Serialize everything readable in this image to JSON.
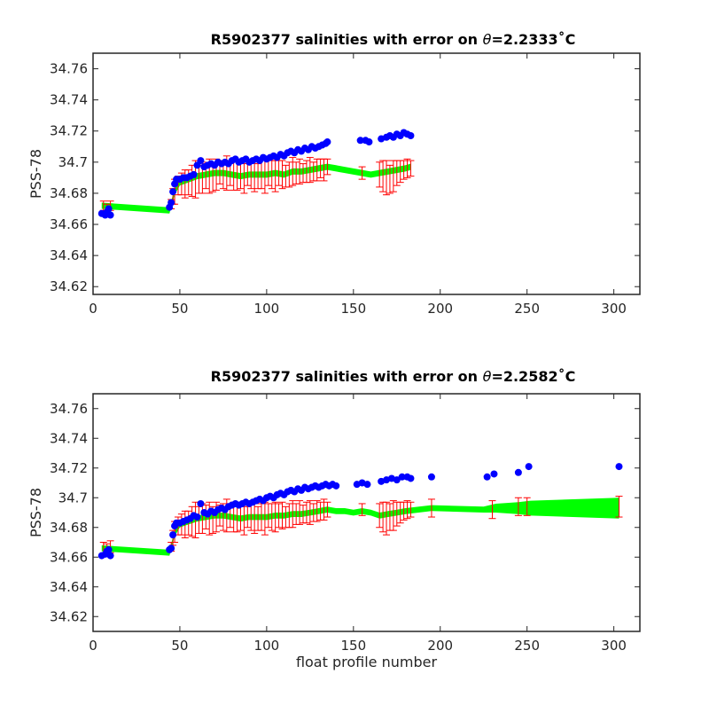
{
  "chart_data": [
    {
      "type": "scatter",
      "title": "R5902377 salinities with error on θ=2.2333˚C",
      "title_prefix": "R5902377 salinities with error on ",
      "title_theta": "θ",
      "title_value": "=2.2333",
      "title_unit": "˚C",
      "xlabel": "",
      "ylabel": "PSS-78",
      "xlim": [
        0,
        315
      ],
      "ylim": [
        34.615,
        34.77
      ],
      "xticks": [
        0,
        50,
        100,
        150,
        200,
        250,
        300
      ],
      "yticks": [
        34.62,
        34.64,
        34.66,
        34.68,
        34.7,
        34.72,
        34.74,
        34.76
      ],
      "ytick_labels": [
        "34.62",
        "34.64",
        "34.66",
        "34.68",
        "34.7",
        "34.72",
        "34.74",
        "34.76"
      ],
      "grid": false,
      "colors": {
        "observed": "#0000ff",
        "calibrated": "#00ff00",
        "error": "#ff0000"
      },
      "band": {
        "x": [
          5,
          44,
          45,
          47,
          50,
          55,
          60,
          65,
          70,
          75,
          80,
          85,
          90,
          95,
          100,
          105,
          110,
          115,
          120,
          125,
          130,
          135,
          140,
          145,
          150,
          155,
          160,
          165,
          170,
          175,
          180,
          183
        ],
        "center": [
          34.672,
          34.669,
          34.673,
          34.681,
          34.687,
          34.689,
          34.691,
          34.692,
          34.693,
          34.693,
          34.692,
          34.691,
          34.692,
          34.692,
          34.692,
          34.693,
          34.692,
          34.694,
          34.694,
          34.695,
          34.696,
          34.697,
          34.696,
          34.695,
          34.694,
          34.693,
          34.692,
          34.693,
          34.694,
          34.695,
          34.696,
          34.697
        ],
        "half_width": [
          0.002,
          0.002,
          0.002,
          0.002,
          0.002,
          0.002,
          0.002,
          0.002,
          0.002,
          0.002,
          0.002,
          0.002,
          0.002,
          0.002,
          0.002,
          0.002,
          0.002,
          0.002,
          0.002,
          0.002,
          0.002,
          0.002,
          0.002,
          0.002,
          0.002,
          0.002,
          0.002,
          0.002,
          0.002,
          0.002,
          0.002,
          0.002
        ]
      },
      "errorbars": {
        "x": [
          6,
          8,
          10,
          45,
          46,
          47,
          49,
          51,
          53,
          55,
          57,
          59,
          61,
          63,
          65,
          67,
          69,
          71,
          73,
          75,
          77,
          79,
          81,
          83,
          85,
          87,
          89,
          91,
          93,
          95,
          97,
          99,
          101,
          103,
          105,
          107,
          109,
          111,
          113,
          115,
          117,
          119,
          121,
          123,
          125,
          127,
          129,
          131,
          133,
          135,
          155,
          165,
          167,
          169,
          171,
          173,
          175,
          177,
          179,
          181,
          183
        ],
        "center": [
          34.672,
          34.67,
          34.672,
          34.673,
          34.678,
          34.681,
          34.685,
          34.686,
          34.686,
          34.687,
          34.688,
          34.689,
          34.689,
          34.69,
          34.691,
          34.691,
          34.69,
          34.692,
          34.693,
          34.692,
          34.693,
          34.693,
          34.692,
          34.691,
          34.691,
          34.69,
          34.692,
          34.692,
          34.691,
          34.691,
          34.692,
          34.691,
          34.693,
          34.692,
          34.691,
          34.693,
          34.692,
          34.691,
          34.692,
          34.694,
          34.693,
          34.694,
          34.693,
          34.694,
          34.695,
          34.694,
          34.695,
          34.696,
          34.695,
          34.697,
          34.693,
          34.692,
          34.691,
          34.69,
          34.689,
          34.691,
          34.693,
          34.694,
          34.695,
          34.696,
          34.696
        ],
        "err": [
          0.003,
          0.003,
          0.003,
          0.003,
          0.005,
          0.008,
          0.006,
          0.007,
          0.009,
          0.008,
          0.01,
          0.012,
          0.009,
          0.01,
          0.008,
          0.011,
          0.009,
          0.01,
          0.007,
          0.009,
          0.011,
          0.008,
          0.01,
          0.009,
          0.008,
          0.01,
          0.007,
          0.009,
          0.01,
          0.008,
          0.009,
          0.011,
          0.008,
          0.009,
          0.01,
          0.008,
          0.009,
          0.007,
          0.008,
          0.009,
          0.007,
          0.008,
          0.006,
          0.007,
          0.008,
          0.006,
          0.007,
          0.006,
          0.007,
          0.005,
          0.004,
          0.008,
          0.01,
          0.011,
          0.009,
          0.01,
          0.008,
          0.007,
          0.006,
          0.006,
          0.005
        ]
      },
      "observed": {
        "x": [
          5,
          7,
          8,
          9,
          10,
          44,
          45,
          46,
          47,
          48,
          50,
          52,
          54,
          56,
          58,
          60,
          62,
          64,
          66,
          68,
          70,
          72,
          74,
          76,
          78,
          80,
          82,
          84,
          86,
          88,
          90,
          92,
          94,
          96,
          98,
          100,
          102,
          104,
          106,
          108,
          110,
          112,
          114,
          116,
          118,
          120,
          122,
          124,
          126,
          128,
          130,
          132,
          134,
          135,
          154,
          157,
          159,
          166,
          169,
          171,
          173,
          175,
          177,
          179,
          181,
          183
        ],
        "y": [
          34.667,
          34.666,
          34.668,
          34.67,
          34.666,
          34.671,
          34.674,
          34.681,
          34.686,
          34.689,
          34.689,
          34.69,
          34.69,
          34.691,
          34.692,
          34.698,
          34.701,
          34.697,
          34.698,
          34.699,
          34.698,
          34.7,
          34.699,
          34.7,
          34.699,
          34.701,
          34.702,
          34.7,
          34.701,
          34.702,
          34.7,
          34.701,
          34.702,
          34.701,
          34.703,
          34.702,
          34.703,
          34.704,
          34.703,
          34.705,
          34.704,
          34.706,
          34.707,
          34.706,
          34.708,
          34.707,
          34.709,
          34.708,
          34.71,
          34.709,
          34.71,
          34.711,
          34.712,
          34.713,
          34.714,
          34.714,
          34.713,
          34.715,
          34.716,
          34.717,
          34.716,
          34.718,
          34.717,
          34.719,
          34.718,
          34.717
        ]
      }
    },
    {
      "type": "scatter",
      "title": "R5902377 salinities with error on θ=2.2582˚C",
      "title_prefix": "R5902377 salinities with error on ",
      "title_theta": "θ",
      "title_value": "=2.2582",
      "title_unit": "˚C",
      "xlabel": "float profile number",
      "ylabel": "PSS-78",
      "xlim": [
        0,
        315
      ],
      "ylim": [
        34.61,
        34.77
      ],
      "xticks": [
        0,
        50,
        100,
        150,
        200,
        250,
        300
      ],
      "yticks": [
        34.62,
        34.64,
        34.66,
        34.68,
        34.7,
        34.72,
        34.74,
        34.76
      ],
      "ytick_labels": [
        "34.62",
        "34.64",
        "34.66",
        "34.68",
        "34.7",
        "34.72",
        "34.74",
        "34.76"
      ],
      "grid": false,
      "colors": {
        "observed": "#0000ff",
        "calibrated": "#00ff00",
        "error": "#ff0000"
      },
      "band": {
        "x": [
          5,
          44,
          45,
          47,
          50,
          55,
          60,
          65,
          70,
          75,
          80,
          85,
          90,
          95,
          100,
          105,
          110,
          115,
          120,
          125,
          130,
          135,
          140,
          145,
          150,
          155,
          160,
          165,
          170,
          175,
          180,
          195,
          225,
          232,
          245,
          252,
          303
        ],
        "center": [
          34.666,
          34.663,
          34.667,
          34.676,
          34.682,
          34.684,
          34.686,
          34.687,
          34.688,
          34.688,
          34.687,
          34.686,
          34.687,
          34.687,
          34.687,
          34.688,
          34.688,
          34.689,
          34.689,
          34.69,
          34.691,
          34.692,
          34.691,
          34.691,
          34.69,
          34.691,
          34.69,
          34.688,
          34.689,
          34.69,
          34.691,
          34.693,
          34.692,
          34.693,
          34.693,
          34.693,
          34.693
        ],
        "half_width": [
          0.002,
          0.002,
          0.002,
          0.002,
          0.002,
          0.002,
          0.002,
          0.002,
          0.002,
          0.002,
          0.002,
          0.002,
          0.002,
          0.002,
          0.002,
          0.002,
          0.002,
          0.002,
          0.002,
          0.002,
          0.002,
          0.002,
          0.002,
          0.002,
          0.002,
          0.002,
          0.002,
          0.002,
          0.002,
          0.002,
          0.002,
          0.002,
          0.002,
          0.003,
          0.004,
          0.005,
          0.007
        ]
      },
      "errorbars": {
        "x": [
          6,
          8,
          10,
          45,
          46,
          47,
          49,
          51,
          53,
          55,
          57,
          59,
          61,
          63,
          65,
          67,
          69,
          71,
          73,
          75,
          77,
          79,
          81,
          83,
          85,
          87,
          89,
          91,
          93,
          95,
          97,
          99,
          101,
          103,
          105,
          107,
          109,
          111,
          113,
          115,
          117,
          119,
          121,
          123,
          125,
          127,
          129,
          131,
          133,
          135,
          155,
          165,
          167,
          169,
          171,
          173,
          175,
          177,
          179,
          181,
          183,
          195,
          230,
          245,
          250,
          303
        ],
        "center": [
          34.666,
          34.665,
          34.667,
          34.667,
          34.673,
          34.677,
          34.681,
          34.682,
          34.682,
          34.683,
          34.684,
          34.685,
          34.685,
          34.686,
          34.687,
          34.686,
          34.685,
          34.687,
          34.688,
          34.687,
          34.688,
          34.688,
          34.687,
          34.686,
          34.686,
          34.685,
          34.687,
          34.687,
          34.686,
          34.686,
          34.687,
          34.686,
          34.688,
          34.687,
          34.687,
          34.688,
          34.688,
          34.687,
          34.688,
          34.689,
          34.689,
          34.69,
          34.689,
          34.69,
          34.69,
          34.69,
          34.691,
          34.691,
          34.692,
          34.692,
          34.692,
          34.688,
          34.687,
          34.686,
          34.687,
          34.688,
          34.689,
          34.69,
          34.691,
          34.692,
          34.692,
          34.693,
          34.692,
          34.694,
          34.694,
          34.694
        ],
        "err": [
          0.004,
          0.004,
          0.004,
          0.003,
          0.005,
          0.007,
          0.006,
          0.007,
          0.009,
          0.008,
          0.01,
          0.012,
          0.009,
          0.01,
          0.008,
          0.011,
          0.009,
          0.01,
          0.007,
          0.009,
          0.011,
          0.008,
          0.01,
          0.009,
          0.008,
          0.01,
          0.007,
          0.009,
          0.01,
          0.008,
          0.009,
          0.011,
          0.008,
          0.009,
          0.01,
          0.008,
          0.009,
          0.007,
          0.008,
          0.009,
          0.007,
          0.008,
          0.006,
          0.007,
          0.008,
          0.006,
          0.007,
          0.006,
          0.007,
          0.005,
          0.004,
          0.008,
          0.01,
          0.011,
          0.009,
          0.01,
          0.008,
          0.007,
          0.006,
          0.006,
          0.005,
          0.006,
          0.006,
          0.006,
          0.006,
          0.007
        ]
      },
      "observed": {
        "x": [
          5,
          7,
          8,
          9,
          10,
          44,
          45,
          46,
          47,
          48,
          50,
          52,
          54,
          56,
          58,
          60,
          62,
          64,
          66,
          68,
          70,
          72,
          74,
          76,
          78,
          80,
          82,
          84,
          86,
          88,
          90,
          92,
          94,
          96,
          98,
          100,
          102,
          104,
          106,
          108,
          110,
          112,
          114,
          116,
          118,
          120,
          122,
          124,
          126,
          128,
          130,
          132,
          134,
          136,
          138,
          140,
          152,
          155,
          158,
          166,
          169,
          172,
          175,
          178,
          181,
          183,
          195,
          227,
          231,
          245,
          251,
          303
        ],
        "y": [
          34.661,
          34.662,
          34.664,
          34.665,
          34.661,
          34.665,
          34.666,
          34.675,
          34.681,
          34.683,
          34.683,
          34.684,
          34.685,
          34.686,
          34.688,
          34.687,
          34.696,
          34.69,
          34.689,
          34.691,
          34.69,
          34.692,
          34.693,
          34.692,
          34.694,
          34.695,
          34.696,
          34.695,
          34.696,
          34.697,
          34.696,
          34.697,
          34.698,
          34.699,
          34.698,
          34.7,
          34.701,
          34.7,
          34.702,
          34.703,
          34.702,
          34.704,
          34.705,
          34.704,
          34.706,
          34.705,
          34.707,
          34.706,
          34.707,
          34.708,
          34.707,
          34.708,
          34.709,
          34.708,
          34.709,
          34.708,
          34.709,
          34.71,
          34.709,
          34.711,
          34.712,
          34.713,
          34.712,
          34.714,
          34.714,
          34.713,
          34.714,
          34.714,
          34.716,
          34.717,
          34.721,
          34.721
        ]
      }
    }
  ]
}
